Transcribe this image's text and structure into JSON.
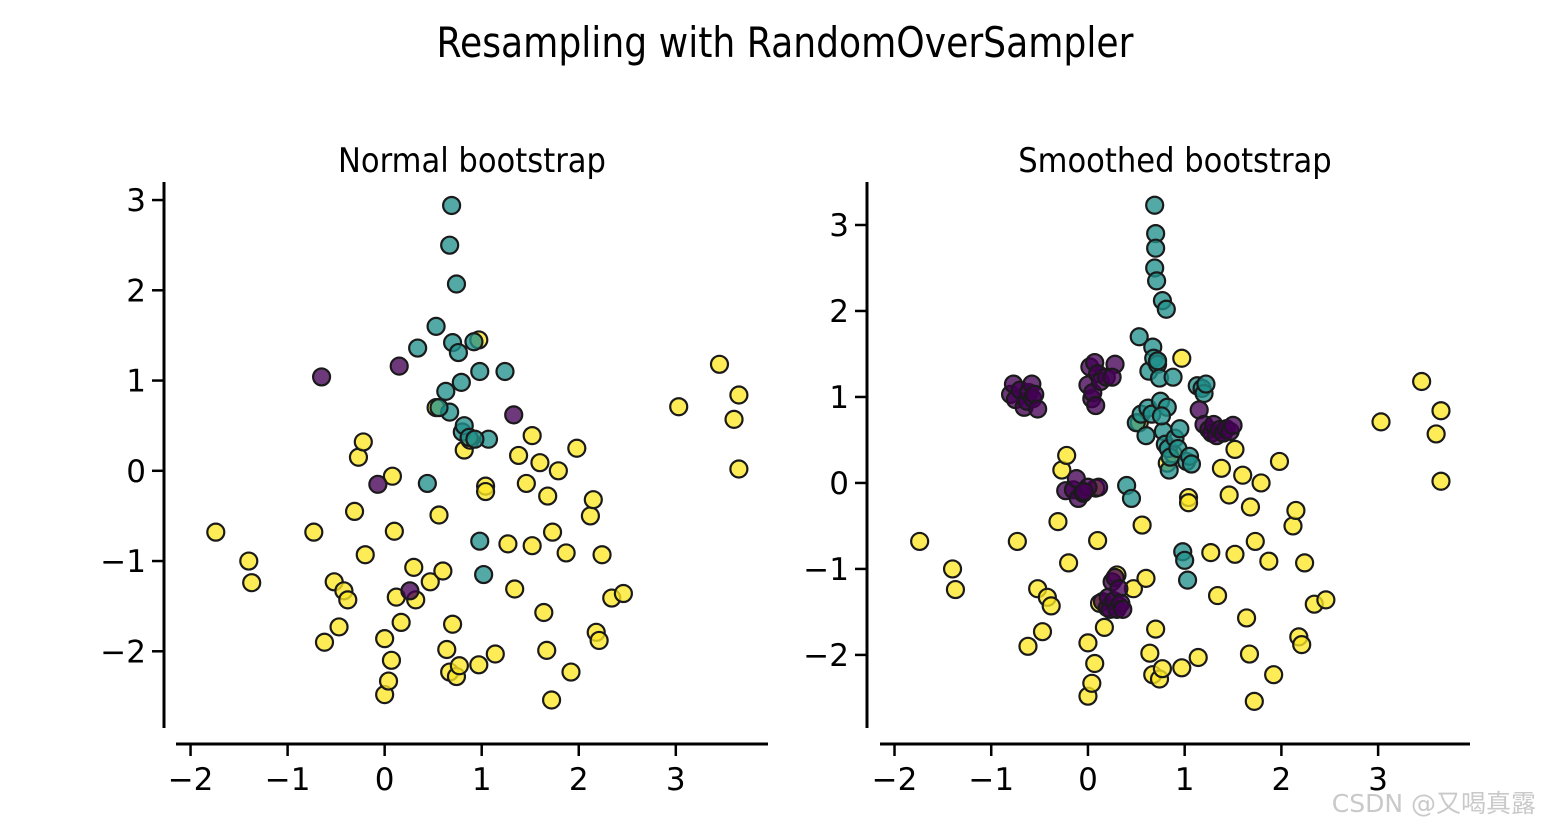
{
  "figure": {
    "title": "Resampling with RandomOverSampler",
    "watermark": "CSDN @又喝真露"
  },
  "colors": {
    "class0": "#440154",
    "class1": "#21918c",
    "class2": "#fde725",
    "edge": "#1a1a1a"
  },
  "chart_data": [
    {
      "type": "scatter",
      "title": "Normal bootstrap",
      "xlabel": "",
      "ylabel": "",
      "xlim": [
        -2.15,
        3.95
      ],
      "ylim": [
        -2.85,
        3.2
      ],
      "xticks": [
        -2,
        -1,
        0,
        1,
        2,
        3
      ],
      "yticks": [
        -2,
        -1,
        0,
        1,
        2,
        3
      ],
      "xtick_labels": [
        "−2",
        "−1",
        "0",
        "1",
        "2",
        "3"
      ],
      "ytick_labels": [
        "−2",
        "−1",
        "0",
        "1",
        "2",
        "3"
      ],
      "grid": false,
      "series": [
        {
          "class": "class2",
          "points": [
            [
              -1.74,
              -0.68
            ],
            [
              -1.4,
              -1.0
            ],
            [
              -1.37,
              -1.24
            ],
            [
              -0.73,
              -0.68
            ],
            [
              -0.62,
              -1.9
            ],
            [
              -0.52,
              -1.23
            ],
            [
              -0.47,
              -1.73
            ],
            [
              -0.42,
              -1.33
            ],
            [
              -0.38,
              -1.43
            ],
            [
              -0.31,
              -0.45
            ],
            [
              -0.27,
              0.15
            ],
            [
              -0.22,
              0.32
            ],
            [
              -0.2,
              -0.93
            ],
            [
              0.0,
              -2.48
            ],
            [
              0.0,
              -1.86
            ],
            [
              0.04,
              -2.33
            ],
            [
              0.07,
              -2.1
            ],
            [
              0.08,
              -0.06
            ],
            [
              0.1,
              -0.67
            ],
            [
              0.12,
              -1.4
            ],
            [
              0.17,
              -1.68
            ],
            [
              0.3,
              -1.07
            ],
            [
              0.32,
              -1.43
            ],
            [
              0.47,
              -1.23
            ],
            [
              0.53,
              0.7
            ],
            [
              0.56,
              -0.49
            ],
            [
              0.6,
              -1.11
            ],
            [
              0.64,
              -1.98
            ],
            [
              0.67,
              -2.23
            ],
            [
              0.7,
              -1.7
            ],
            [
              0.74,
              -2.28
            ],
            [
              0.77,
              -2.16
            ],
            [
              0.82,
              0.23
            ],
            [
              0.88,
              0.34
            ],
            [
              0.97,
              1.45
            ],
            [
              0.97,
              -2.15
            ],
            [
              1.04,
              -0.17
            ],
            [
              1.04,
              -0.23
            ],
            [
              1.14,
              -2.03
            ],
            [
              1.27,
              -0.81
            ],
            [
              1.34,
              -1.31
            ],
            [
              1.38,
              0.17
            ],
            [
              1.46,
              -0.14
            ],
            [
              1.52,
              -0.83
            ],
            [
              1.52,
              0.39
            ],
            [
              1.6,
              0.09
            ],
            [
              1.64,
              -1.57
            ],
            [
              1.67,
              -1.99
            ],
            [
              1.68,
              -0.28
            ],
            [
              1.72,
              -2.54
            ],
            [
              1.73,
              -0.68
            ],
            [
              1.79,
              0.0
            ],
            [
              1.87,
              -0.91
            ],
            [
              1.92,
              -2.23
            ],
            [
              1.98,
              0.25
            ],
            [
              2.12,
              -0.5
            ],
            [
              2.15,
              -0.32
            ],
            [
              2.18,
              -1.79
            ],
            [
              2.21,
              -1.88
            ],
            [
              2.24,
              -0.93
            ],
            [
              2.34,
              -1.41
            ],
            [
              2.46,
              -1.36
            ],
            [
              3.03,
              0.71
            ],
            [
              3.45,
              1.18
            ],
            [
              3.6,
              0.57
            ],
            [
              3.65,
              0.84
            ],
            [
              3.65,
              0.02
            ]
          ]
        },
        {
          "class": "class1",
          "points": [
            [
              0.34,
              1.36
            ],
            [
              0.44,
              -0.14
            ],
            [
              0.53,
              1.6
            ],
            [
              0.63,
              0.88
            ],
            [
              0.67,
              0.65
            ],
            [
              0.67,
              2.5
            ],
            [
              0.69,
              2.94
            ],
            [
              0.7,
              1.42
            ],
            [
              0.74,
              2.07
            ],
            [
              0.76,
              1.31
            ],
            [
              0.79,
              0.98
            ],
            [
              0.8,
              0.43
            ],
            [
              0.82,
              0.5
            ],
            [
              0.87,
              0.37
            ],
            [
              0.92,
              1.43
            ],
            [
              0.98,
              1.1
            ],
            [
              0.98,
              -0.78
            ],
            [
              1.02,
              -1.15
            ],
            [
              1.07,
              0.35
            ],
            [
              1.24,
              1.1
            ],
            [
              0.56,
              0.7
            ],
            [
              0.93,
              0.35
            ]
          ]
        },
        {
          "class": "class0",
          "points": [
            [
              -0.65,
              1.04
            ],
            [
              -0.07,
              -0.15
            ],
            [
              0.15,
              1.16
            ],
            [
              0.26,
              -1.33
            ],
            [
              1.33,
              0.62
            ]
          ]
        }
      ]
    },
    {
      "type": "scatter",
      "title": "Smoothed bootstrap",
      "xlabel": "",
      "ylabel": "",
      "xlim": [
        -2.15,
        3.95
      ],
      "ylim": [
        -2.85,
        3.5
      ],
      "xticks": [
        -2,
        -1,
        0,
        1,
        2,
        3
      ],
      "yticks": [
        -2,
        -1,
        0,
        1,
        2,
        3
      ],
      "xtick_labels": [
        "−2",
        "−1",
        "0",
        "1",
        "2",
        "3"
      ],
      "ytick_labels": [
        "−2",
        "−1",
        "0",
        "1",
        "2",
        "3"
      ],
      "grid": false,
      "series": [
        {
          "class": "class2",
          "points": [
            [
              -1.74,
              -0.68
            ],
            [
              -1.4,
              -1.0
            ],
            [
              -1.37,
              -1.24
            ],
            [
              -0.73,
              -0.68
            ],
            [
              -0.62,
              -1.9
            ],
            [
              -0.52,
              -1.23
            ],
            [
              -0.47,
              -1.73
            ],
            [
              -0.42,
              -1.33
            ],
            [
              -0.38,
              -1.43
            ],
            [
              -0.31,
              -0.45
            ],
            [
              -0.27,
              0.15
            ],
            [
              -0.22,
              0.32
            ],
            [
              -0.2,
              -0.93
            ],
            [
              0.0,
              -2.48
            ],
            [
              0.0,
              -1.86
            ],
            [
              0.04,
              -2.33
            ],
            [
              0.07,
              -2.1
            ],
            [
              0.08,
              -0.06
            ],
            [
              0.1,
              -0.67
            ],
            [
              0.12,
              -1.4
            ],
            [
              0.17,
              -1.68
            ],
            [
              0.3,
              -1.07
            ],
            [
              0.32,
              -1.43
            ],
            [
              0.47,
              -1.23
            ],
            [
              0.53,
              0.7
            ],
            [
              0.56,
              -0.49
            ],
            [
              0.6,
              -1.11
            ],
            [
              0.64,
              -1.98
            ],
            [
              0.67,
              -2.23
            ],
            [
              0.7,
              -1.7
            ],
            [
              0.74,
              -2.28
            ],
            [
              0.77,
              -2.16
            ],
            [
              0.82,
              0.23
            ],
            [
              0.88,
              0.34
            ],
            [
              0.97,
              1.45
            ],
            [
              0.97,
              -2.15
            ],
            [
              1.04,
              -0.17
            ],
            [
              1.04,
              -0.23
            ],
            [
              1.14,
              -2.03
            ],
            [
              1.27,
              -0.81
            ],
            [
              1.34,
              -1.31
            ],
            [
              1.38,
              0.17
            ],
            [
              1.46,
              -0.14
            ],
            [
              1.52,
              -0.83
            ],
            [
              1.52,
              0.39
            ],
            [
              1.6,
              0.09
            ],
            [
              1.64,
              -1.57
            ],
            [
              1.67,
              -1.99
            ],
            [
              1.68,
              -0.28
            ],
            [
              1.72,
              -2.54
            ],
            [
              1.73,
              -0.68
            ],
            [
              1.79,
              0.0
            ],
            [
              1.87,
              -0.91
            ],
            [
              1.92,
              -2.23
            ],
            [
              1.98,
              0.25
            ],
            [
              2.12,
              -0.5
            ],
            [
              2.15,
              -0.32
            ],
            [
              2.18,
              -1.79
            ],
            [
              2.21,
              -1.88
            ],
            [
              2.24,
              -0.93
            ],
            [
              2.34,
              -1.41
            ],
            [
              2.46,
              -1.36
            ],
            [
              3.03,
              0.71
            ],
            [
              3.45,
              1.18
            ],
            [
              3.6,
              0.57
            ],
            [
              3.65,
              0.84
            ],
            [
              3.65,
              0.02
            ]
          ]
        },
        {
          "class": "class1",
          "points": [
            [
              0.4,
              -0.03
            ],
            [
              0.45,
              -0.18
            ],
            [
              0.5,
              0.7
            ],
            [
              0.53,
              1.7
            ],
            [
              0.55,
              0.8
            ],
            [
              0.6,
              0.55
            ],
            [
              0.62,
              0.87
            ],
            [
              0.63,
              1.3
            ],
            [
              0.66,
              0.8
            ],
            [
              0.67,
              1.58
            ],
            [
              0.68,
              1.45
            ],
            [
              0.69,
              2.5
            ],
            [
              0.69,
              3.23
            ],
            [
              0.7,
              2.9
            ],
            [
              0.7,
              2.73
            ],
            [
              0.71,
              2.35
            ],
            [
              0.72,
              1.38
            ],
            [
              0.74,
              1.22
            ],
            [
              0.75,
              0.95
            ],
            [
              0.77,
              2.12
            ],
            [
              0.78,
              0.6
            ],
            [
              0.8,
              0.45
            ],
            [
              0.81,
              2.02
            ],
            [
              0.82,
              0.88
            ],
            [
              0.83,
              0.4
            ],
            [
              0.84,
              0.15
            ],
            [
              0.85,
              0.3
            ],
            [
              0.88,
              1.23
            ],
            [
              0.9,
              0.52
            ],
            [
              0.93,
              0.4
            ],
            [
              0.95,
              0.63
            ],
            [
              0.98,
              -0.8
            ],
            [
              1.0,
              -0.9
            ],
            [
              1.02,
              0.25
            ],
            [
              1.03,
              -1.13
            ],
            [
              1.05,
              0.31
            ],
            [
              1.07,
              0.22
            ],
            [
              1.13,
              1.13
            ],
            [
              1.18,
              1.1
            ],
            [
              1.2,
              1.04
            ],
            [
              1.22,
              1.15
            ],
            [
              0.72,
              1.42
            ],
            [
              0.76,
              0.78
            ]
          ]
        },
        {
          "class": "class0",
          "points": [
            [
              -0.8,
              1.03
            ],
            [
              -0.77,
              1.15
            ],
            [
              -0.75,
              0.97
            ],
            [
              -0.7,
              1.08
            ],
            [
              -0.66,
              0.88
            ],
            [
              -0.63,
              0.95
            ],
            [
              -0.61,
              1.05
            ],
            [
              -0.58,
              1.15
            ],
            [
              -0.57,
              0.98
            ],
            [
              -0.55,
              1.03
            ],
            [
              -0.52,
              0.86
            ],
            [
              -0.23,
              -0.09
            ],
            [
              -0.15,
              -0.08
            ],
            [
              -0.12,
              0.05
            ],
            [
              -0.1,
              -0.18
            ],
            [
              -0.05,
              -0.12
            ],
            [
              0.0,
              1.14
            ],
            [
              0.02,
              1.35
            ],
            [
              0.04,
              0.98
            ],
            [
              0.05,
              1.05
            ],
            [
              0.07,
              1.4
            ],
            [
              0.08,
              0.9
            ],
            [
              0.1,
              1.27
            ],
            [
              0.11,
              -0.05
            ],
            [
              0.13,
              1.18
            ],
            [
              0.15,
              -1.38
            ],
            [
              0.19,
              1.23
            ],
            [
              0.2,
              -1.45
            ],
            [
              0.21,
              -1.33
            ],
            [
              0.23,
              -1.47
            ],
            [
              0.25,
              -1.15
            ],
            [
              0.27,
              -1.37
            ],
            [
              0.28,
              -1.1
            ],
            [
              0.3,
              -1.47
            ],
            [
              0.32,
              -1.23
            ],
            [
              0.34,
              -1.4
            ],
            [
              0.36,
              -1.47
            ],
            [
              0.28,
              1.38
            ],
            [
              0.25,
              1.23
            ],
            [
              1.15,
              0.85
            ],
            [
              1.2,
              0.68
            ],
            [
              1.25,
              0.62
            ],
            [
              1.28,
              0.58
            ],
            [
              1.3,
              0.68
            ],
            [
              1.33,
              0.55
            ],
            [
              1.36,
              0.62
            ],
            [
              1.4,
              0.58
            ],
            [
              1.43,
              0.63
            ],
            [
              1.47,
              0.6
            ],
            [
              1.5,
              0.67
            ],
            [
              0.0,
              -0.05
            ],
            [
              -0.04,
              -0.1
            ]
          ]
        }
      ]
    }
  ]
}
